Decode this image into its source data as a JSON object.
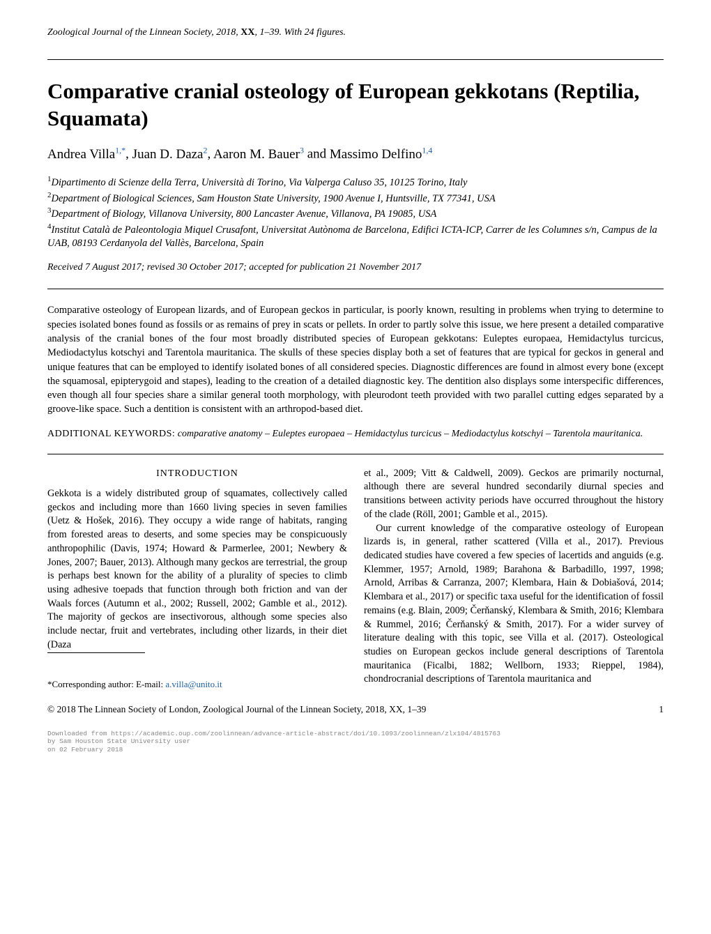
{
  "journal": {
    "name": "Zoological Journal of the Linnean Society",
    "year": "2018",
    "volume": "XX",
    "pages": "1–39",
    "figures": "With 24 figures."
  },
  "title": "Comparative cranial osteology of European gekkotans (Reptilia, Squamata)",
  "authors": [
    {
      "name": "Andrea Villa",
      "affil": "1,*"
    },
    {
      "name": "Juan D. Daza",
      "affil": "2"
    },
    {
      "name": "Aaron M. Bauer",
      "affil": "3"
    },
    {
      "name": "Massimo Delfino",
      "affil": "1,4"
    }
  ],
  "author_sep": ", ",
  "author_sep_last": " and ",
  "affiliations": [
    {
      "num": "1",
      "text": "Dipartimento di Scienze della Terra, Università di Torino, Via Valperga Caluso 35, 10125 Torino, Italy"
    },
    {
      "num": "2",
      "text": "Department of Biological Sciences, Sam Houston State University, 1900 Avenue I, Huntsville, TX 77341, USA"
    },
    {
      "num": "3",
      "text": "Department of Biology, Villanova University, 800 Lancaster Avenue, Villanova, PA 19085, USA"
    },
    {
      "num": "4",
      "text": "Institut Català de Paleontologia Miquel Crusafont, Universitat Autònoma de Barcelona, Edifici ICTA-ICP, Carrer de les Columnes s/n, Campus de la UAB, 08193 Cerdanyola del Vallès, Barcelona, Spain"
    }
  ],
  "dates": "Received 7 August 2017; revised 30 October 2017; accepted for publication 21 November 2017",
  "abstract": "Comparative osteology of European lizards, and of European geckos in particular, is poorly known, resulting in problems when trying to determine to species isolated bones found as fossils or as remains of prey in scats or pellets. In order to partly solve this issue, we here present a detailed comparative analysis of the cranial bones of the four most broadly distributed species of European gekkotans: Euleptes europaea, Hemidactylus turcicus, Mediodactylus kotschyi and Tarentola mauritanica. The skulls of these species display both a set of features that are typical for geckos in general and unique features that can be employed to identify isolated bones of all considered species. Diagnostic differences are found in almost every bone (except the squamosal, epipterygoid and stapes), leading to the creation of a detailed diagnostic key. The dentition also displays some interspecific differences, even though all four species share a similar general tooth morphology, with pleurodont teeth provided with two parallel cutting edges separated by a groove-like space. Such a dentition is consistent with an arthropod-based diet.",
  "keywords_lead": "ADDITIONAL KEYWORDS:",
  "keywords_text": " comparative anatomy – Euleptes europaea – Hemidactylus turcicus – Mediodactylus kotschyi – Tarentola mauritanica.",
  "section_heading": "INTRODUCTION",
  "left_col_1": "Gekkota is a widely distributed group of squamates, collectively called geckos and including more than 1660 living species in seven families (Uetz & Hošek, 2016). They occupy a wide range of habitats, ranging from forested areas to deserts, and some species may be conspicuously anthropophilic (Davis, 1974; Howard & Parmerlee, 2001; Newbery & Jones, 2007; Bauer, 2013). Although many geckos are terrestrial, the group is perhaps best known for the ability of a plurality of species to climb using adhesive toepads that function through both friction and van der Waals forces (Autumn et al., 2002; Russell, 2002; Gamble et al., 2012). The majority of geckos are insectivorous, although some species also include nectar, fruit and vertebrates, including other lizards, in their diet (Daza",
  "right_col_1": "et al., 2009; Vitt & Caldwell, 2009). Geckos are primarily nocturnal, although there are several hundred secondarily diurnal species and transitions between activity periods have occurred throughout the history of the clade (Röll, 2001; Gamble et al., 2015).",
  "right_col_2": "Our current knowledge of the comparative osteology of European lizards is, in general, rather scattered (Villa et al., 2017). Previous dedicated studies have covered a few species of lacertids and anguids (e.g. Klemmer, 1957; Arnold, 1989; Barahona & Barbadillo, 1997, 1998; Arnold, Arribas & Carranza, 2007; Klembara, Hain & Dobiašová, 2014; Klembara et al., 2017) or specific taxa useful for the identification of fossil remains (e.g. Blain, 2009; Čerňanský, Klembara & Smith, 2016; Klembara & Rummel, 2016; Čerňanský & Smith, 2017). For a wider survey of literature dealing with this topic, see Villa et al. (2017). Osteological studies on European geckos include general descriptions of Tarentola mauritanica (Ficalbi, 1882; Wellborn, 1933; Rieppel, 1984), chondrocranial descriptions of Tarentola mauritanica and",
  "corresp_label": "*Corresponding author: E-mail: ",
  "corresp_email": "a.villa@unito.it",
  "copyright": "© 2018 The Linnean Society of London, Zoological Journal of the Linnean Society, 2018, XX, 1–39",
  "page_number": "1",
  "dl_footer": {
    "l1": "Downloaded from https://academic.oup.com/zoolinnean/advance-article-abstract/doi/10.1093/zoolinnean/zlx104/4815763",
    "l2": "by Sam Houston State University user",
    "l3": "on 02 February 2018"
  },
  "colors": {
    "link": "#1a5fb4",
    "text": "#000000",
    "footer": "#888888",
    "background": "#ffffff"
  }
}
